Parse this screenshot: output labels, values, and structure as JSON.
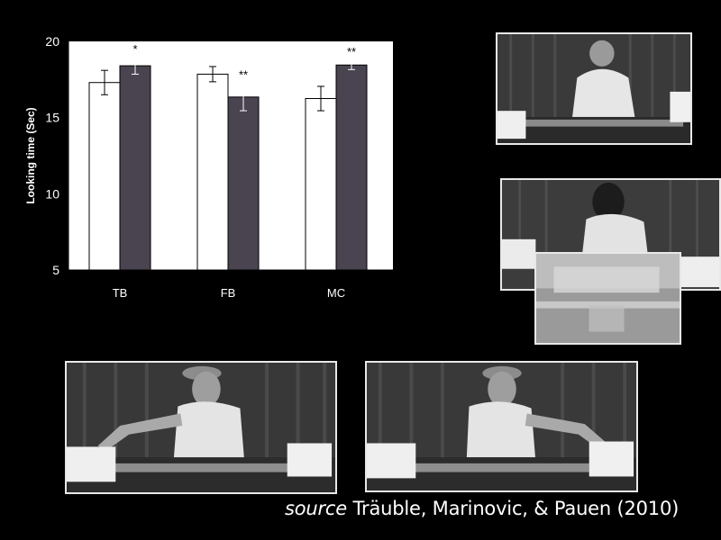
{
  "chart_data": {
    "type": "bar",
    "categories": [
      "TB",
      "FB",
      "MC"
    ],
    "series": [
      {
        "values": [
          17.3,
          17.85,
          16.25
        ],
        "errors": [
          0.8,
          0.5,
          0.8
        ],
        "color": "#ffffff"
      },
      {
        "values": [
          18.4,
          16.35,
          18.45
        ],
        "errors": [
          0.55,
          0.9,
          0.3
        ],
        "color": "#4a4450"
      }
    ],
    "significance": [
      "*",
      "**",
      "**"
    ],
    "ylabel": "Looking time (Sec)",
    "ylim": [
      5,
      20
    ],
    "yticks": [
      5,
      10,
      15,
      20
    ]
  },
  "photos": {
    "top_right": "woman-standing-behind-table-with-boxes",
    "middle_right": "woman-moving-box-motion-blur",
    "bottom_left": "woman-reaching-to-left-box",
    "bottom_middle": "woman-reaching-to-right-box"
  },
  "caption": {
    "source_word": "source",
    "authors": " Träuble,  Marinovic, & Pauen (2010)"
  }
}
